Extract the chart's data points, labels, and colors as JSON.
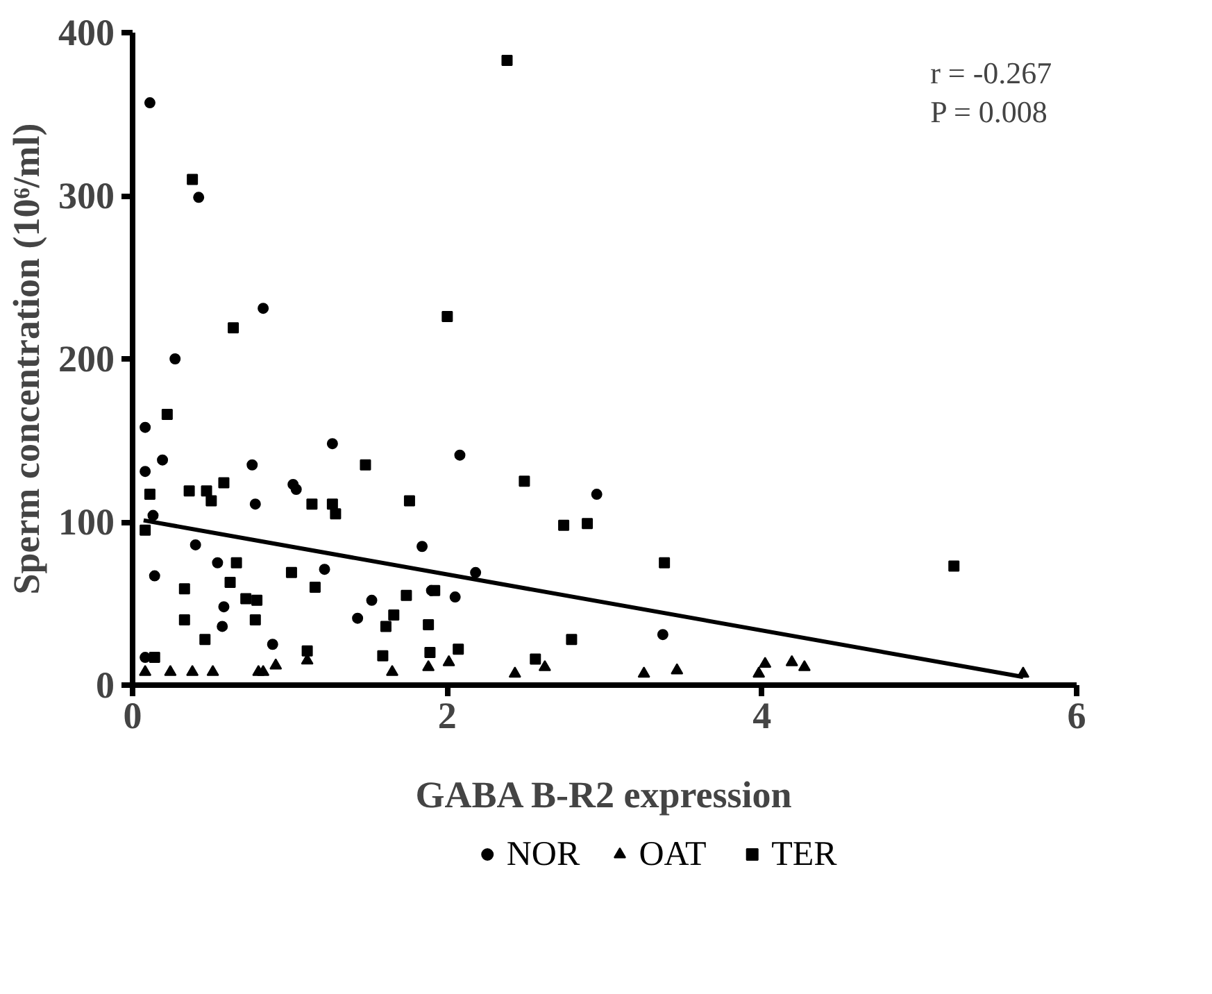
{
  "chart_data": {
    "type": "scatter",
    "xlabel": "GABA B-R2 expression",
    "ylabel": "Sperm concentration (10⁶/ml)",
    "xlim": [
      0,
      6
    ],
    "ylim": [
      0,
      400
    ],
    "xticks": [
      0,
      2,
      4,
      6
    ],
    "yticks": [
      0,
      100,
      200,
      300,
      400
    ],
    "grid": false,
    "legend": "bottom",
    "annotations": [
      "r = -0.267",
      "P = 0.008"
    ],
    "series": [
      {
        "name": "NOR",
        "color": "#000000",
        "marker": "circle",
        "x": [
          0.11,
          0.42,
          0.27,
          0.83,
          0.08,
          0.08,
          0.19,
          0.13,
          1.27,
          0.76,
          0.78,
          1.02,
          1.04,
          0.4,
          0.54,
          1.22,
          1.84,
          1.52,
          1.43,
          2.05,
          0.58,
          0.57,
          0.89,
          0.08,
          2.08,
          1.9,
          2.95,
          2.18,
          3.37,
          0.14
        ],
        "values": [
          357,
          299,
          200,
          231,
          158,
          131,
          138,
          104,
          148,
          135,
          111,
          123,
          120,
          86,
          75,
          71,
          85,
          52,
          41,
          54,
          48,
          36,
          25,
          17,
          141,
          58,
          117,
          69,
          31,
          67
        ]
      },
      {
        "name": "OAT",
        "color": "#000000",
        "marker": "triangle",
        "x": [
          0.08,
          0.24,
          0.38,
          0.51,
          0.8,
          0.83,
          0.91,
          1.11,
          1.65,
          1.88,
          2.01,
          2.43,
          2.62,
          3.25,
          3.46,
          3.98,
          4.02,
          4.19,
          4.27,
          5.66
        ],
        "values": [
          8,
          8,
          8,
          8,
          8,
          8,
          12,
          15,
          8,
          11,
          14,
          7,
          11,
          7,
          9,
          7,
          13,
          14,
          11,
          7
        ]
      },
      {
        "name": "TER",
        "color": "#000000",
        "marker": "square",
        "x": [
          0.38,
          0.64,
          2.0,
          2.38,
          0.22,
          0.11,
          0.36,
          0.47,
          0.5,
          0.58,
          1.48,
          1.14,
          1.27,
          1.29,
          1.76,
          0.08,
          0.66,
          0.33,
          0.62,
          1.01,
          1.16,
          0.72,
          0.79,
          0.33,
          0.78,
          0.46,
          1.74,
          1.92,
          1.66,
          1.61,
          1.88,
          1.11,
          1.89,
          2.07,
          0.14,
          1.59,
          2.49,
          2.74,
          2.89,
          3.38,
          5.22,
          2.79,
          2.56
        ],
        "values": [
          310,
          219,
          226,
          383,
          166,
          117,
          119,
          119,
          113,
          124,
          135,
          111,
          111,
          105,
          113,
          95,
          75,
          59,
          63,
          69,
          60,
          53,
          52,
          40,
          40,
          28,
          55,
          58,
          43,
          36,
          37,
          21,
          20,
          22,
          17,
          18,
          125,
          98,
          99,
          75,
          73,
          28,
          16
        ]
      },
      {
        "type": "line",
        "color": "#000000",
        "line_style": "solid",
        "x": [
          0.07,
          5.66
        ],
        "values": [
          101,
          5
        ]
      }
    ]
  }
}
